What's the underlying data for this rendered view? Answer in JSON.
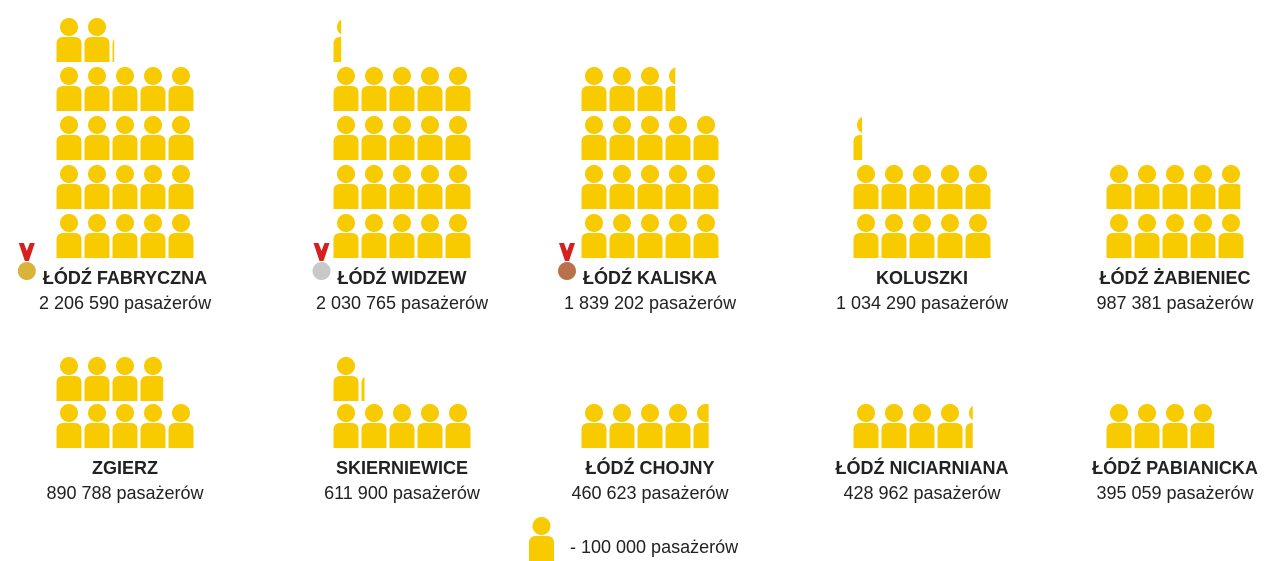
{
  "chart_data": {
    "type": "pictogram",
    "categories": [
      "ŁÓDŹ FABRYCZNA",
      "ŁÓDŹ WIDZEW",
      "ŁÓDŹ KALISKA",
      "KOLUSZKI",
      "ŁÓDŹ ŻABIENIEC",
      "ZGIERZ",
      "SKIERNIEWICE",
      "ŁÓDŹ CHOJNY",
      "ŁÓDŹ NICIARNIANA",
      "ŁÓDŹ PABIANICKA"
    ],
    "values": [
      2206590,
      2030765,
      1839202,
      1034290,
      987381,
      890788,
      611900,
      460623,
      428962,
      395059
    ],
    "value_labels": [
      "2 206 590 pasażerów",
      "2 030 765 pasażerów",
      "1 839 202 pasażerów",
      "1 034 290 pasażerów",
      "987 381 pasażerów",
      "890 788 pasażerów",
      "611 900 pasażerów",
      "460 623 pasażerów",
      "428 962 pasażerów",
      "395 059 pasażerów"
    ],
    "color": "#f7cb00",
    "unit": {
      "value": 100000,
      "label": "- 100 000 pasażerów"
    },
    "medals": [
      "#d9b43a",
      "#c8c8c8",
      "#b8714a"
    ]
  }
}
